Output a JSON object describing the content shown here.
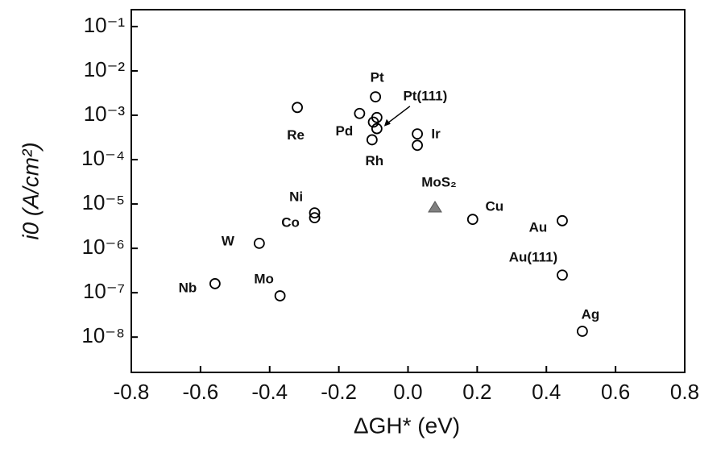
{
  "chart_data": {
    "type": "scatter",
    "xlabel": "ΔGH* (eV)",
    "ylabel": "i0 (A/cm²)",
    "xlim": [
      -0.8,
      0.8
    ],
    "xticks": [
      -0.8,
      -0.6,
      -0.4,
      -0.2,
      {
        "value": 0,
        "label": "0.0"
      },
      0.2,
      0.4,
      0.6,
      0.8
    ],
    "ylim": [
      1.6e-09,
      0.24
    ],
    "ylog": true,
    "yticks": [
      {
        "value": 0.1,
        "label": "10⁻¹"
      },
      {
        "value": 0.01,
        "label": "10⁻²"
      },
      {
        "value": 0.001,
        "label": "10⁻³"
      },
      {
        "value": 0.0001,
        "label": "10⁻⁴"
      },
      {
        "value": 1e-05,
        "label": "10⁻⁵"
      },
      {
        "value": 1e-06,
        "label": "10⁻⁶"
      },
      {
        "value": 1e-07,
        "label": "10⁻⁷"
      },
      {
        "value": 1e-08,
        "label": "10⁻⁸"
      }
    ],
    "series": [
      {
        "marker": "circle",
        "color": "#000000",
        "x": [
          -0.558,
          -0.43,
          -0.37,
          -0.27,
          -0.27,
          -0.32,
          -0.14,
          -0.094,
          -0.09,
          -0.1,
          -0.09,
          -0.104,
          0.027,
          0.027,
          0.187,
          0.446,
          0.446,
          0.504
        ],
        "values": [
          1.6e-07,
          1.3e-06,
          8.5e-08,
          4.9e-06,
          6.3e-06,
          0.0015,
          0.0011,
          0.0026,
          0.00089,
          0.0007,
          0.0005,
          0.00028,
          0.00038,
          0.00021,
          4.5e-06,
          4.2e-06,
          2.5e-07,
          1.35e-08
        ],
        "labels": [
          "Nb",
          "W",
          "Mo",
          "Co",
          "Ni",
          "Re",
          "Pd",
          "Pt",
          "Pt(111)",
          null,
          null,
          "Rh",
          "Ir",
          null,
          "Cu",
          "Au",
          "Au(111)",
          "Ag"
        ]
      },
      {
        "marker": "triangle",
        "color": "#808080",
        "x": [
          0.078
        ],
        "values": [
          8.5e-06
        ],
        "labels": [
          "MoS₂"
        ]
      }
    ]
  }
}
